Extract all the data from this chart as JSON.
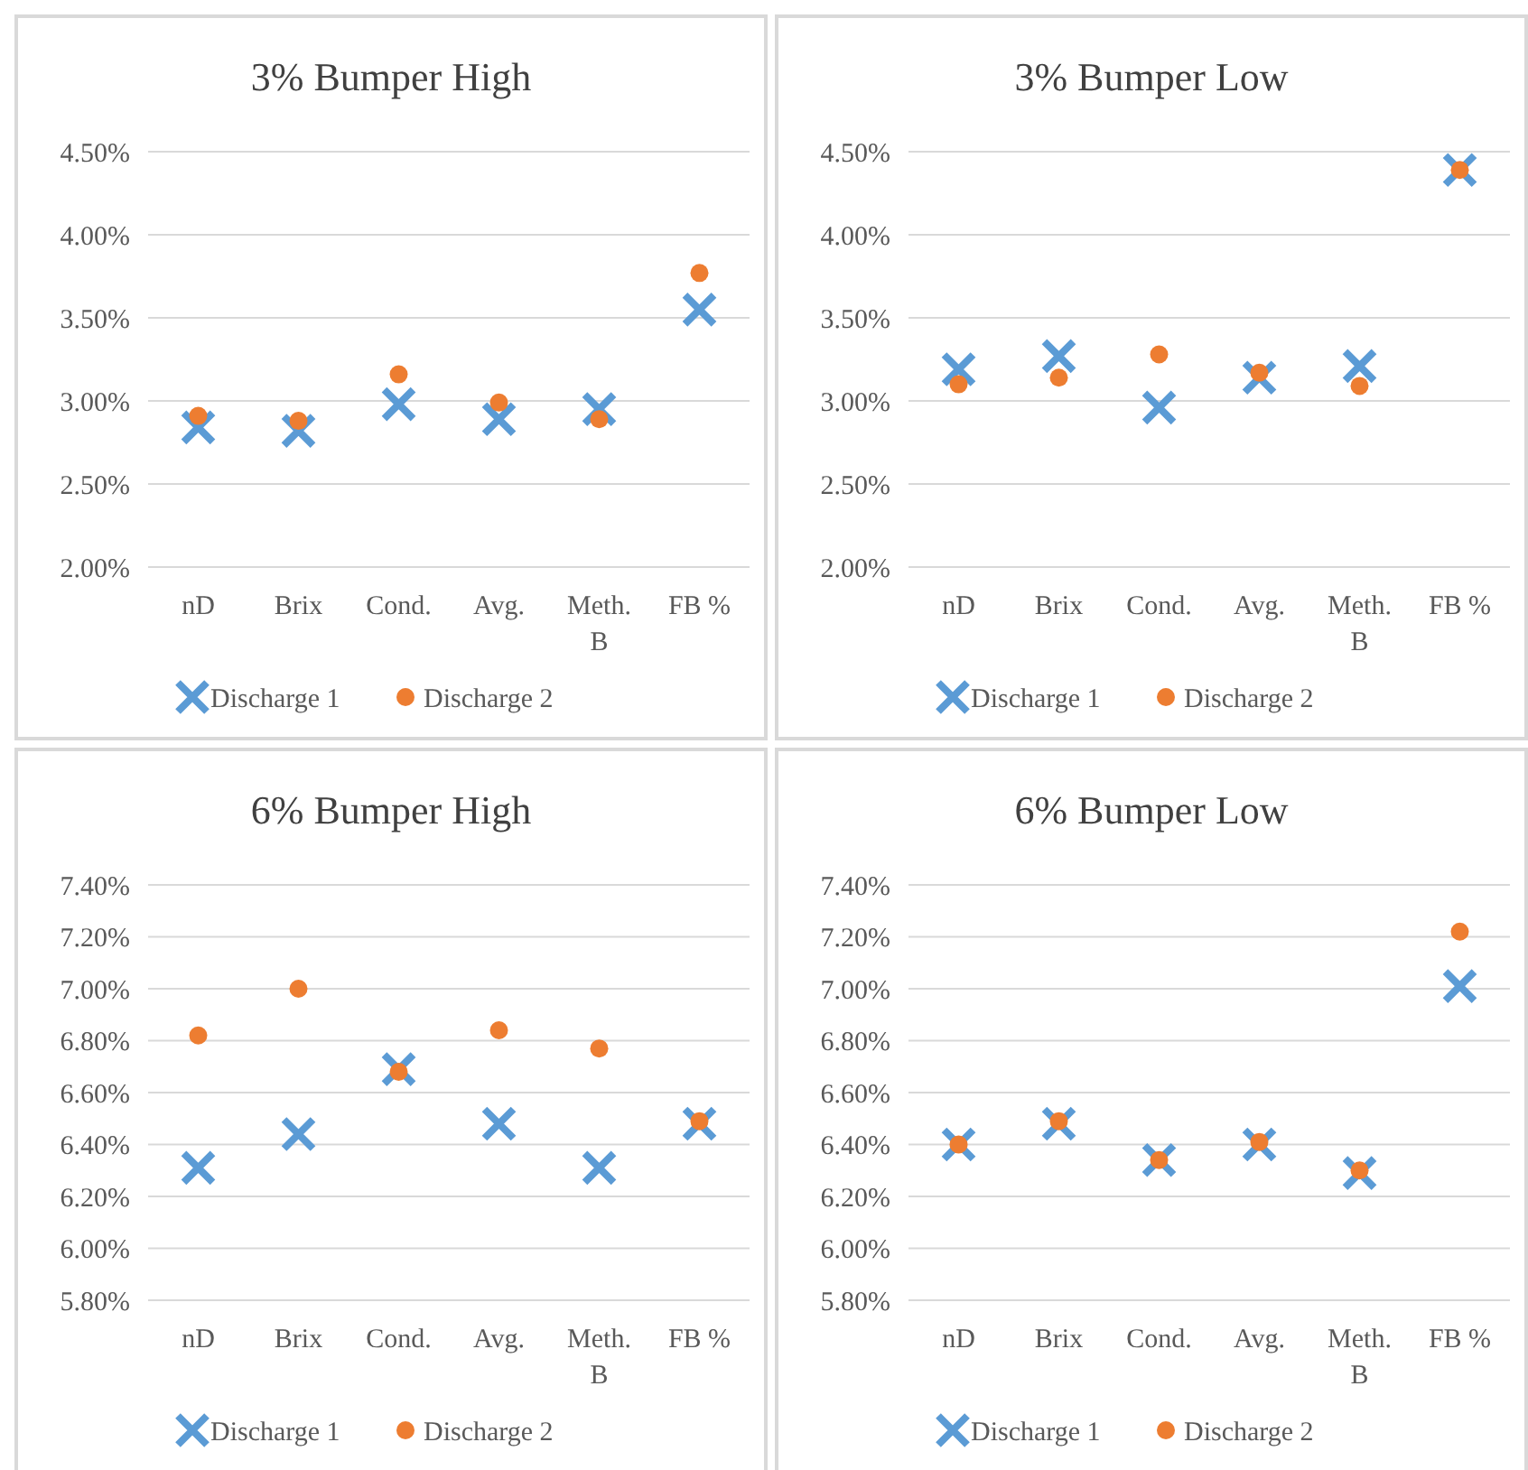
{
  "chart_data": [
    {
      "type": "scatter",
      "title": "3% Bumper High",
      "categories": [
        "nD",
        "Brix",
        "Cond.",
        "Avg.",
        "Meth. B",
        "FB %"
      ],
      "ylim": [
        2.0,
        4.5
      ],
      "yticks": [
        {
          "value": 2.0,
          "label": "2.00%"
        },
        {
          "value": 2.5,
          "label": "2.50%"
        },
        {
          "value": 3.0,
          "label": "3.00%"
        },
        {
          "value": 3.5,
          "label": "3.50%"
        },
        {
          "value": 4.0,
          "label": "4.00%"
        },
        {
          "value": 4.5,
          "label": "4.50%"
        }
      ],
      "grid": "y",
      "legend": "bottom",
      "series": [
        {
          "name": "Discharge 1",
          "color": "#5b9bd5",
          "marker": "cross",
          "values": [
            2.84,
            2.82,
            2.98,
            2.89,
            2.95,
            3.55
          ]
        },
        {
          "name": "Discharge 2",
          "color": "#ed7d31",
          "marker": "circle",
          "values": [
            2.91,
            2.88,
            3.16,
            2.99,
            2.89,
            3.77
          ]
        }
      ]
    },
    {
      "type": "scatter",
      "title": "3% Bumper Low",
      "categories": [
        "nD",
        "Brix",
        "Cond.",
        "Avg.",
        "Meth. B",
        "FB %"
      ],
      "ylim": [
        2.0,
        4.5
      ],
      "yticks": [
        {
          "value": 2.0,
          "label": "2.00%"
        },
        {
          "value": 2.5,
          "label": "2.50%"
        },
        {
          "value": 3.0,
          "label": "3.00%"
        },
        {
          "value": 3.5,
          "label": "3.50%"
        },
        {
          "value": 4.0,
          "label": "4.00%"
        },
        {
          "value": 4.5,
          "label": "4.50%"
        }
      ],
      "grid": "y",
      "legend": "bottom",
      "series": [
        {
          "name": "Discharge 1",
          "color": "#5b9bd5",
          "marker": "cross",
          "values": [
            3.19,
            3.27,
            2.96,
            3.14,
            3.21,
            4.39
          ]
        },
        {
          "name": "Discharge 2",
          "color": "#ed7d31",
          "marker": "circle",
          "values": [
            3.1,
            3.14,
            3.28,
            3.17,
            3.09,
            4.39
          ]
        }
      ]
    },
    {
      "type": "scatter",
      "title": "6% Bumper High",
      "categories": [
        "nD",
        "Brix",
        "Cond.",
        "Avg.",
        "Meth. B",
        "FB %"
      ],
      "ylim": [
        5.8,
        7.4
      ],
      "yticks": [
        {
          "value": 5.8,
          "label": "5.80%"
        },
        {
          "value": 6.0,
          "label": "6.00%"
        },
        {
          "value": 6.2,
          "label": "6.20%"
        },
        {
          "value": 6.4,
          "label": "6.40%"
        },
        {
          "value": 6.6,
          "label": "6.60%"
        },
        {
          "value": 6.8,
          "label": "6.80%"
        },
        {
          "value": 7.0,
          "label": "7.00%"
        },
        {
          "value": 7.2,
          "label": "7.20%"
        },
        {
          "value": 7.4,
          "label": "7.40%"
        }
      ],
      "grid": "y",
      "legend": "bottom",
      "series": [
        {
          "name": "Discharge 1",
          "color": "#5b9bd5",
          "marker": "cross",
          "values": [
            6.31,
            6.44,
            6.69,
            6.48,
            6.31,
            6.48
          ]
        },
        {
          "name": "Discharge 2",
          "color": "#ed7d31",
          "marker": "circle",
          "values": [
            6.82,
            7.0,
            6.68,
            6.84,
            6.77,
            6.49
          ]
        }
      ]
    },
    {
      "type": "scatter",
      "title": "6% Bumper Low",
      "categories": [
        "nD",
        "Brix",
        "Cond.",
        "Avg.",
        "Meth. B",
        "FB %"
      ],
      "ylim": [
        5.8,
        7.4
      ],
      "yticks": [
        {
          "value": 5.8,
          "label": "5.80%"
        },
        {
          "value": 6.0,
          "label": "6.00%"
        },
        {
          "value": 6.2,
          "label": "6.20%"
        },
        {
          "value": 6.4,
          "label": "6.40%"
        },
        {
          "value": 6.6,
          "label": "6.60%"
        },
        {
          "value": 6.8,
          "label": "6.80%"
        },
        {
          "value": 7.0,
          "label": "7.00%"
        },
        {
          "value": 7.2,
          "label": "7.20%"
        },
        {
          "value": 7.4,
          "label": "7.40%"
        }
      ],
      "grid": "y",
      "legend": "bottom",
      "series": [
        {
          "name": "Discharge 1",
          "color": "#5b9bd5",
          "marker": "cross",
          "values": [
            6.4,
            6.48,
            6.34,
            6.4,
            6.29,
            7.01
          ]
        },
        {
          "name": "Discharge 2",
          "color": "#ed7d31",
          "marker": "circle",
          "values": [
            6.4,
            6.49,
            6.34,
            6.41,
            6.3,
            7.22
          ]
        }
      ]
    }
  ]
}
